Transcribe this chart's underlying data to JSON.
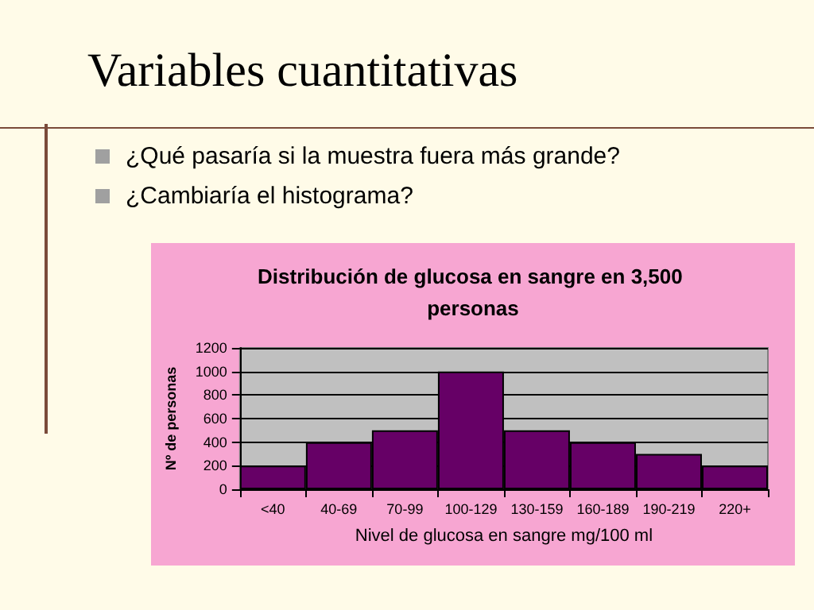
{
  "chart_data": {
    "type": "bar",
    "title": "Distribución de glucosa en sangre en 3,500 personas",
    "xlabel": "Nivel de glucosa en sangre mg/100 ml",
    "ylabel": "Nº de personas",
    "categories": [
      "<40",
      "40-69",
      "70-99",
      "100-129",
      "130-159",
      "160-189",
      "190-219",
      "220+"
    ],
    "values": [
      200,
      400,
      500,
      1000,
      500,
      400,
      300,
      200
    ],
    "color": "#660066",
    "ylim": [
      0,
      1200
    ],
    "yticks": [
      0,
      200,
      400,
      600,
      800,
      1000,
      1200
    ],
    "grid": "y",
    "annotations": [
      "Variables cuantitativas",
      "¿Qué pasaría si la muestra fuera más grande?",
      "¿Cambiaría el histograma?"
    ]
  }
}
